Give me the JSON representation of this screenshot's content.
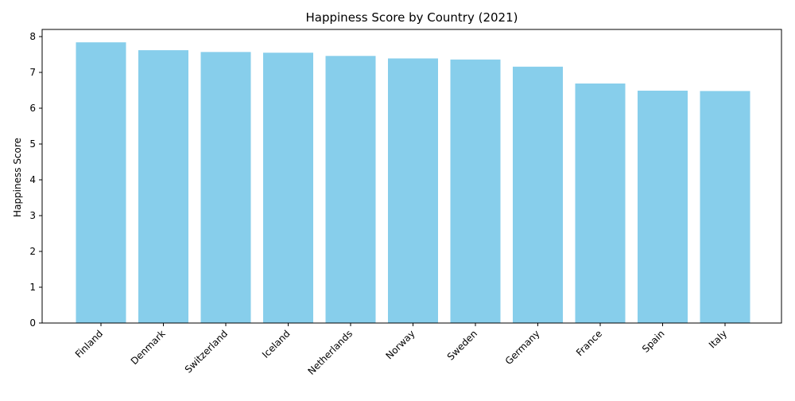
{
  "chart_data": {
    "type": "bar",
    "title": "Happiness Score by Country (2021)",
    "xlabel": "",
    "ylabel": "Happiness Score",
    "categories": [
      "Finland",
      "Denmark",
      "Switzerland",
      "Iceland",
      "Netherlands",
      "Norway",
      "Sweden",
      "Germany",
      "France",
      "Spain",
      "Italy"
    ],
    "values": [
      7.84,
      7.62,
      7.57,
      7.55,
      7.46,
      7.39,
      7.36,
      7.16,
      6.69,
      6.49,
      6.48
    ],
    "ylim": [
      0,
      8.2
    ],
    "yticks": [
      0,
      1,
      2,
      3,
      4,
      5,
      6,
      7,
      8
    ],
    "bar_color": "#87ceeb",
    "grid": false,
    "xtick_rotation": "45 degrees, right-aligned"
  }
}
